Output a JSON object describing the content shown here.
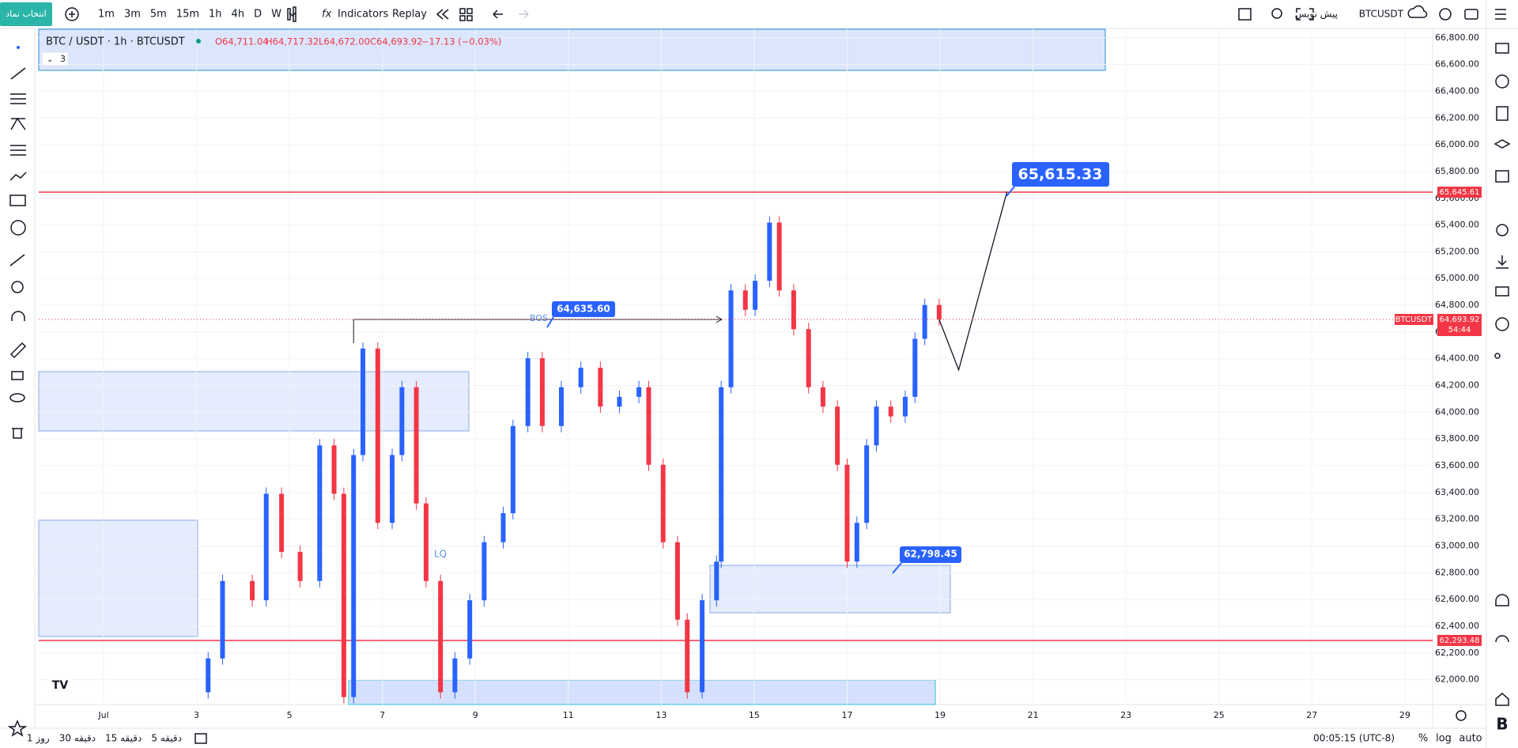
{
  "toolbar": {
    "symbol_search": "انتخاب نماد",
    "timeframes": [
      "1m",
      "3m",
      "5m",
      "15m",
      "1h",
      "4h",
      "D",
      "W"
    ],
    "indicators": "Indicators",
    "replay": "Replay",
    "symbol": "BTCUSDT",
    "draft": "پیش نویس"
  },
  "legend": {
    "symbol": "BTC / USDT · 1h · BTCUSDT",
    "open": "O64,711.04",
    "high": "H64,717.32",
    "low": "L64,672.00",
    "close": "C64,693.92",
    "change": "−17.13 (−0.03%)",
    "indicator_count": "3"
  },
  "price_axis": {
    "ticks": [
      {
        "value": 66800,
        "label": "66,800.00"
      },
      {
        "value": 66600,
        "label": "66,600.00"
      },
      {
        "value": 66400,
        "label": "66,400.00"
      },
      {
        "value": 66200,
        "label": "66,200.00"
      },
      {
        "value": 66000,
        "label": "66,000.00"
      },
      {
        "value": 65800,
        "label": "65,800.00"
      },
      {
        "value": 65600,
        "label": "65,600.00"
      },
      {
        "value": 65400,
        "label": "65,400.00"
      },
      {
        "value": 65200,
        "label": "65,200.00"
      },
      {
        "value": 65000,
        "label": "65,000.00"
      },
      {
        "value": 64800,
        "label": "64,800.00"
      },
      {
        "value": 64600,
        "label": "64,600.00"
      },
      {
        "value": 64400,
        "label": "64,400.00"
      },
      {
        "value": 64200,
        "label": "64,200.00"
      },
      {
        "value": 64000,
        "label": "64,000.00"
      },
      {
        "value": 63800,
        "label": "63,800.00"
      },
      {
        "value": 63600,
        "label": "63,600.00"
      },
      {
        "value": 63400,
        "label": "63,400.00"
      },
      {
        "value": 63200,
        "label": "63,200.00"
      },
      {
        "value": 63000,
        "label": "63,000.00"
      },
      {
        "value": 62800,
        "label": "62,800.00"
      },
      {
        "value": 62600,
        "label": "62,600.00"
      },
      {
        "value": 62400,
        "label": "62,400.00"
      },
      {
        "value": 62200,
        "label": "62,200.00"
      },
      {
        "value": 62000,
        "label": "62,000.00"
      }
    ],
    "levels": [
      {
        "value": 65645.61,
        "label": "65,645.61"
      },
      {
        "value": 62293.48,
        "label": "62,293.48"
      }
    ],
    "current": {
      "symbol": "BTCUSDT",
      "value": 64693.92,
      "label": "64,693.92",
      "countdown": "54:44"
    }
  },
  "time_axis": {
    "ticks": [
      {
        "value": 1,
        "label": "Jul"
      },
      3,
      5,
      7,
      9,
      11,
      13,
      15,
      17,
      19,
      21,
      23,
      25,
      27,
      29
    ]
  },
  "price_path": [
    {
      "day": 2.21,
      "price": 61906
    },
    {
      "day": 3.25,
      "price": 62159
    },
    {
      "day": 3.56,
      "price": 62738
    },
    {
      "day": 4.2,
      "price": 62594
    },
    {
      "day": 4.5,
      "price": 63390
    },
    {
      "day": 4.83,
      "price": 62956
    },
    {
      "day": 5.23,
      "price": 62738
    },
    {
      "day": 5.65,
      "price": 63752
    },
    {
      "day": 5.96,
      "price": 63390
    },
    {
      "day": 6.17,
      "price": 61870
    },
    {
      "day": 6.38,
      "price": 63680
    },
    {
      "day": 6.58,
      "price": 64476
    },
    {
      "day": 6.9,
      "price": 63173
    },
    {
      "day": 7.21,
      "price": 63680
    },
    {
      "day": 7.42,
      "price": 64187
    },
    {
      "day": 7.73,
      "price": 63318
    },
    {
      "day": 7.94,
      "price": 62738
    },
    {
      "day": 8.25,
      "price": 61906
    },
    {
      "day": 8.56,
      "price": 62159
    },
    {
      "day": 8.88,
      "price": 62594
    },
    {
      "day": 9.19,
      "price": 63028
    },
    {
      "day": 9.6,
      "price": 63245
    },
    {
      "day": 9.81,
      "price": 63897
    },
    {
      "day": 10.13,
      "price": 64404
    },
    {
      "day": 10.44,
      "price": 63897
    },
    {
      "day": 10.85,
      "price": 64187
    },
    {
      "day": 11.27,
      "price": 64332
    },
    {
      "day": 11.69,
      "price": 64042
    },
    {
      "day": 12.1,
      "price": 64115
    },
    {
      "day": 12.52,
      "price": 64187
    },
    {
      "day": 12.73,
      "price": 63607
    },
    {
      "day": 13.04,
      "price": 63028
    },
    {
      "day": 13.35,
      "price": 62449
    },
    {
      "day": 13.56,
      "price": 61906
    },
    {
      "day": 13.88,
      "price": 62594
    },
    {
      "day": 14.19,
      "price": 62883
    },
    {
      "day": 14.29,
      "price": 64187
    },
    {
      "day": 14.5,
      "price": 64911
    },
    {
      "day": 14.81,
      "price": 64766
    },
    {
      "day": 15.02,
      "price": 64983
    },
    {
      "day": 15.33,
      "price": 65418
    },
    {
      "day": 15.54,
      "price": 64911
    },
    {
      "day": 15.85,
      "price": 64621
    },
    {
      "day": 16.17,
      "price": 64187
    },
    {
      "day": 16.48,
      "price": 64042
    },
    {
      "day": 16.79,
      "price": 63607
    },
    {
      "day": 17.0,
      "price": 62883
    },
    {
      "day": 17.21,
      "price": 63173
    },
    {
      "day": 17.42,
      "price": 63752
    },
    {
      "day": 17.63,
      "price": 64042
    },
    {
      "day": 17.94,
      "price": 63969
    },
    {
      "day": 18.25,
      "price": 64115
    },
    {
      "day": 18.46,
      "price": 64549
    },
    {
      "day": 18.67,
      "price": 64802
    },
    {
      "day": 18.98,
      "price": 64694
    }
  ],
  "projection": [
    {
      "day": 18.98,
      "price": 64694
    },
    {
      "day": 19.4,
      "price": 64317
    },
    {
      "day": 20.44,
      "price": 65649
    }
  ],
  "bos_line": {
    "from_day": 6.38,
    "to_day": 14.3
  },
  "annotations": {
    "bos": "BOS",
    "lq": "LQ",
    "bos_price": "64,635.60",
    "support_price": "62,798.45",
    "target_price": "65,615.33"
  },
  "bottom_bar": {
    "ranges": [
      "5 دقیقه",
      "15 دقیقه",
      "30 دقیقه",
      "1 روز"
    ],
    "clock": "00:05:15 (UTC-8)",
    "percent": "%",
    "log": "log",
    "auto": "auto"
  }
}
